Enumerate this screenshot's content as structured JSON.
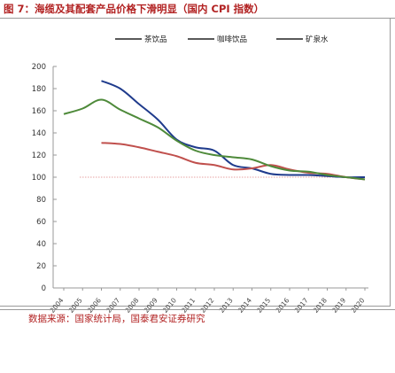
{
  "header": {
    "title": "图 7：海缆及其配套产品价格下滑明显（国内 CPI 指数）"
  },
  "footer": {
    "source": "数据来源：国家统计局，国泰君安证券研究"
  },
  "colors": {
    "series_tea": "#1f3b8c",
    "series_coffee": "#c0504d",
    "series_mineral": "#4e8a3a",
    "baseline": "#e6a0a0",
    "axis": "#999999",
    "title": "#b22222"
  },
  "chart_data": {
    "type": "line",
    "x": [
      "2004",
      "2005",
      "2006",
      "2007",
      "2008",
      "2009",
      "2010",
      "2011",
      "2012",
      "2013",
      "2014",
      "2015",
      "2016",
      "2017",
      "2018",
      "2019",
      "2020"
    ],
    "series": [
      {
        "name": "茶饮品",
        "values": [
          null,
          null,
          187,
          180,
          166,
          152,
          134,
          127,
          124,
          111,
          108,
          103,
          102,
          102,
          101,
          100,
          100
        ]
      },
      {
        "name": "咖啡饮品",
        "values": [
          null,
          null,
          131,
          130,
          127,
          123,
          119,
          113,
          111,
          107,
          108,
          111,
          107,
          104,
          103,
          100,
          98
        ]
      },
      {
        "name": "矿泉水",
        "values": [
          157,
          162,
          170,
          161,
          153,
          145,
          133,
          124,
          120,
          118,
          116,
          110,
          106,
          105,
          102,
          100,
          98
        ]
      }
    ],
    "reference_line": 100,
    "ylim": [
      0,
      200
    ],
    "yticks": [
      0,
      20,
      40,
      60,
      80,
      100,
      120,
      140,
      160,
      180,
      200
    ],
    "legend": "top",
    "grid": false
  }
}
